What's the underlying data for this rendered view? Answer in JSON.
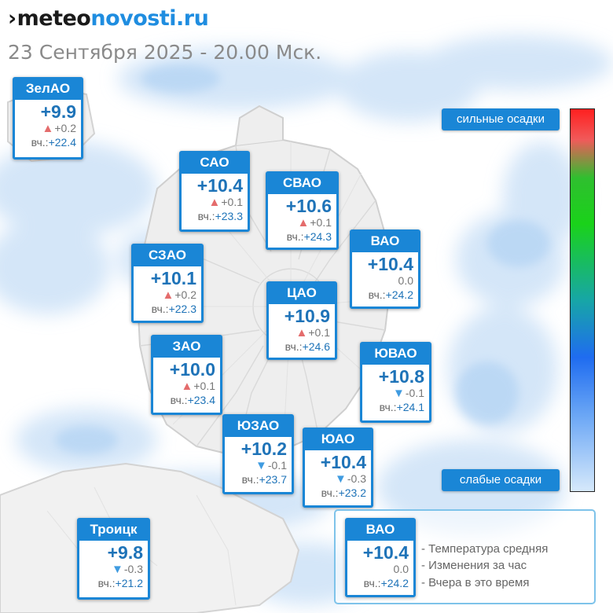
{
  "site": {
    "brand_prefix": "meteo",
    "brand_main": "novosti.ru"
  },
  "subtitle": "23 Сентября 2025 - 20.00 Мск.",
  "yesterday_prefix": "вч.:",
  "districts": [
    {
      "id": "zelao",
      "name": "ЗелАО",
      "temp": "+9.9",
      "trend": "up",
      "change": "+0.2",
      "yesterday": "+22.4"
    },
    {
      "id": "sao",
      "name": "САО",
      "temp": "+10.4",
      "trend": "up",
      "change": "+0.1",
      "yesterday": "+23.3"
    },
    {
      "id": "svao",
      "name": "СВАО",
      "temp": "+10.6",
      "trend": "up",
      "change": "+0.1",
      "yesterday": "+24.3"
    },
    {
      "id": "vao",
      "name": "ВАО",
      "temp": "+10.4",
      "trend": "none",
      "change": "0.0",
      "yesterday": "+24.2"
    },
    {
      "id": "szao",
      "name": "СЗАО",
      "temp": "+10.1",
      "trend": "up",
      "change": "+0.2",
      "yesterday": "+22.3"
    },
    {
      "id": "cao",
      "name": "ЦАО",
      "temp": "+10.9",
      "trend": "up",
      "change": "+0.1",
      "yesterday": "+24.6"
    },
    {
      "id": "zao",
      "name": "ЗАО",
      "temp": "+10.0",
      "trend": "up",
      "change": "+0.1",
      "yesterday": "+23.4"
    },
    {
      "id": "yuvao",
      "name": "ЮВАО",
      "temp": "+10.8",
      "trend": "down",
      "change": "-0.1",
      "yesterday": "+24.1"
    },
    {
      "id": "yuzao",
      "name": "ЮЗАО",
      "temp": "+10.2",
      "trend": "down",
      "change": "-0.1",
      "yesterday": "+23.7"
    },
    {
      "id": "yuao",
      "name": "ЮАО",
      "temp": "+10.4",
      "trend": "down",
      "change": "-0.3",
      "yesterday": "+23.2"
    },
    {
      "id": "troitsk",
      "name": "Троицк",
      "temp": "+9.8",
      "trend": "down",
      "change": "-0.3",
      "yesterday": "+21.2"
    }
  ],
  "precip_scale": {
    "high_label": "сильные осадки",
    "low_label": "слабые осадки"
  },
  "legend": {
    "sample": {
      "name": "ВАО",
      "temp": "+10.4",
      "trend": "none",
      "change": "0.0",
      "yesterday": "+24.2"
    },
    "line_temp": "- Температура средняя",
    "line_change": "- Изменения за час",
    "line_yesterday": "- Вчера в это время"
  },
  "colors": {
    "card_blue": "#1a86d6",
    "value_blue": "#1e73b8",
    "trend_up": "#e46c6c",
    "trend_down": "#3f9be0",
    "precip_light": "#bcdaf6"
  }
}
